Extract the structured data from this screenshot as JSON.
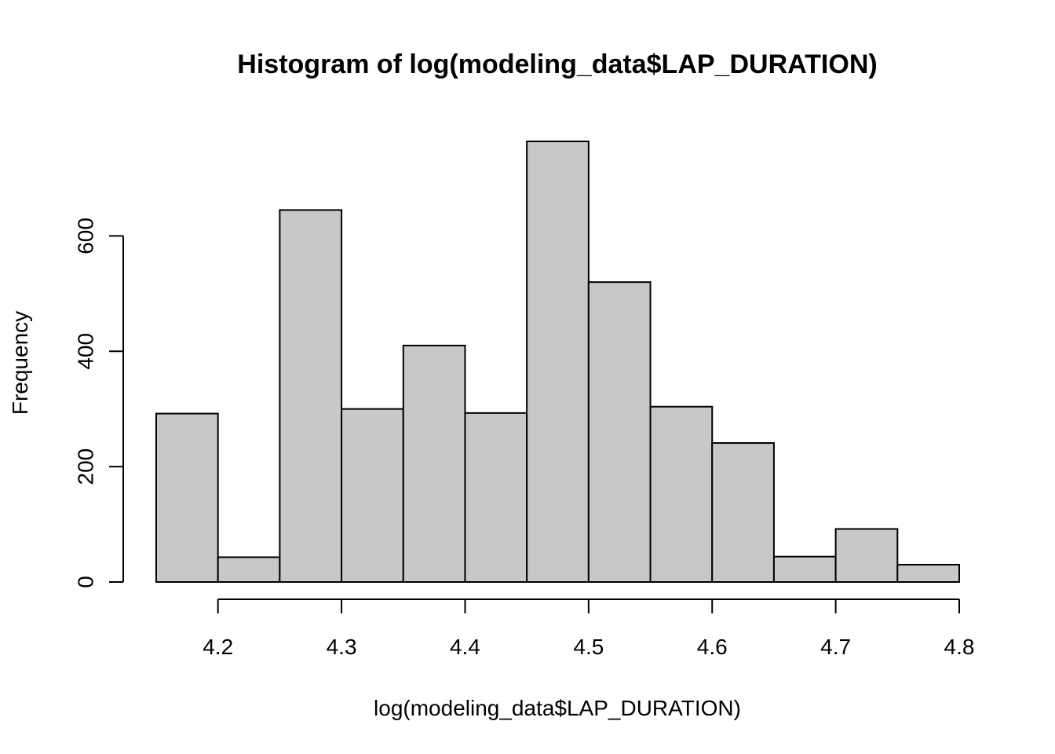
{
  "chart_data": {
    "type": "bar",
    "title": "Histogram of log(modeling_data$LAP_DURATION)",
    "xlabel": "log(modeling_data$LAP_DURATION)",
    "ylabel": "Frequency",
    "bins": [
      {
        "start": 4.15,
        "end": 4.2,
        "count": 292
      },
      {
        "start": 4.2,
        "end": 4.25,
        "count": 43
      },
      {
        "start": 4.25,
        "end": 4.3,
        "count": 645
      },
      {
        "start": 4.3,
        "end": 4.35,
        "count": 300
      },
      {
        "start": 4.35,
        "end": 4.4,
        "count": 410
      },
      {
        "start": 4.4,
        "end": 4.45,
        "count": 293
      },
      {
        "start": 4.45,
        "end": 4.5,
        "count": 764
      },
      {
        "start": 4.5,
        "end": 4.55,
        "count": 520
      },
      {
        "start": 4.55,
        "end": 4.6,
        "count": 304
      },
      {
        "start": 4.6,
        "end": 4.65,
        "count": 241
      },
      {
        "start": 4.65,
        "end": 4.7,
        "count": 44
      },
      {
        "start": 4.7,
        "end": 4.75,
        "count": 92
      },
      {
        "start": 4.75,
        "end": 4.8,
        "count": 30
      }
    ],
    "x_ticks": [
      "4.2",
      "4.3",
      "4.4",
      "4.5",
      "4.6",
      "4.7",
      "4.8"
    ],
    "x_tick_values": [
      4.2,
      4.3,
      4.4,
      4.5,
      4.6,
      4.7,
      4.8
    ],
    "y_ticks": [
      "0",
      "200",
      "400",
      "600"
    ],
    "y_tick_values": [
      0,
      200,
      400,
      600
    ],
    "xlim": [
      4.15,
      4.8
    ],
    "ylim": [
      0,
      764
    ],
    "grid": false,
    "legend": "none",
    "colors": {
      "bar_fill": "#c8c8c8",
      "bar_stroke": "#000000"
    }
  }
}
